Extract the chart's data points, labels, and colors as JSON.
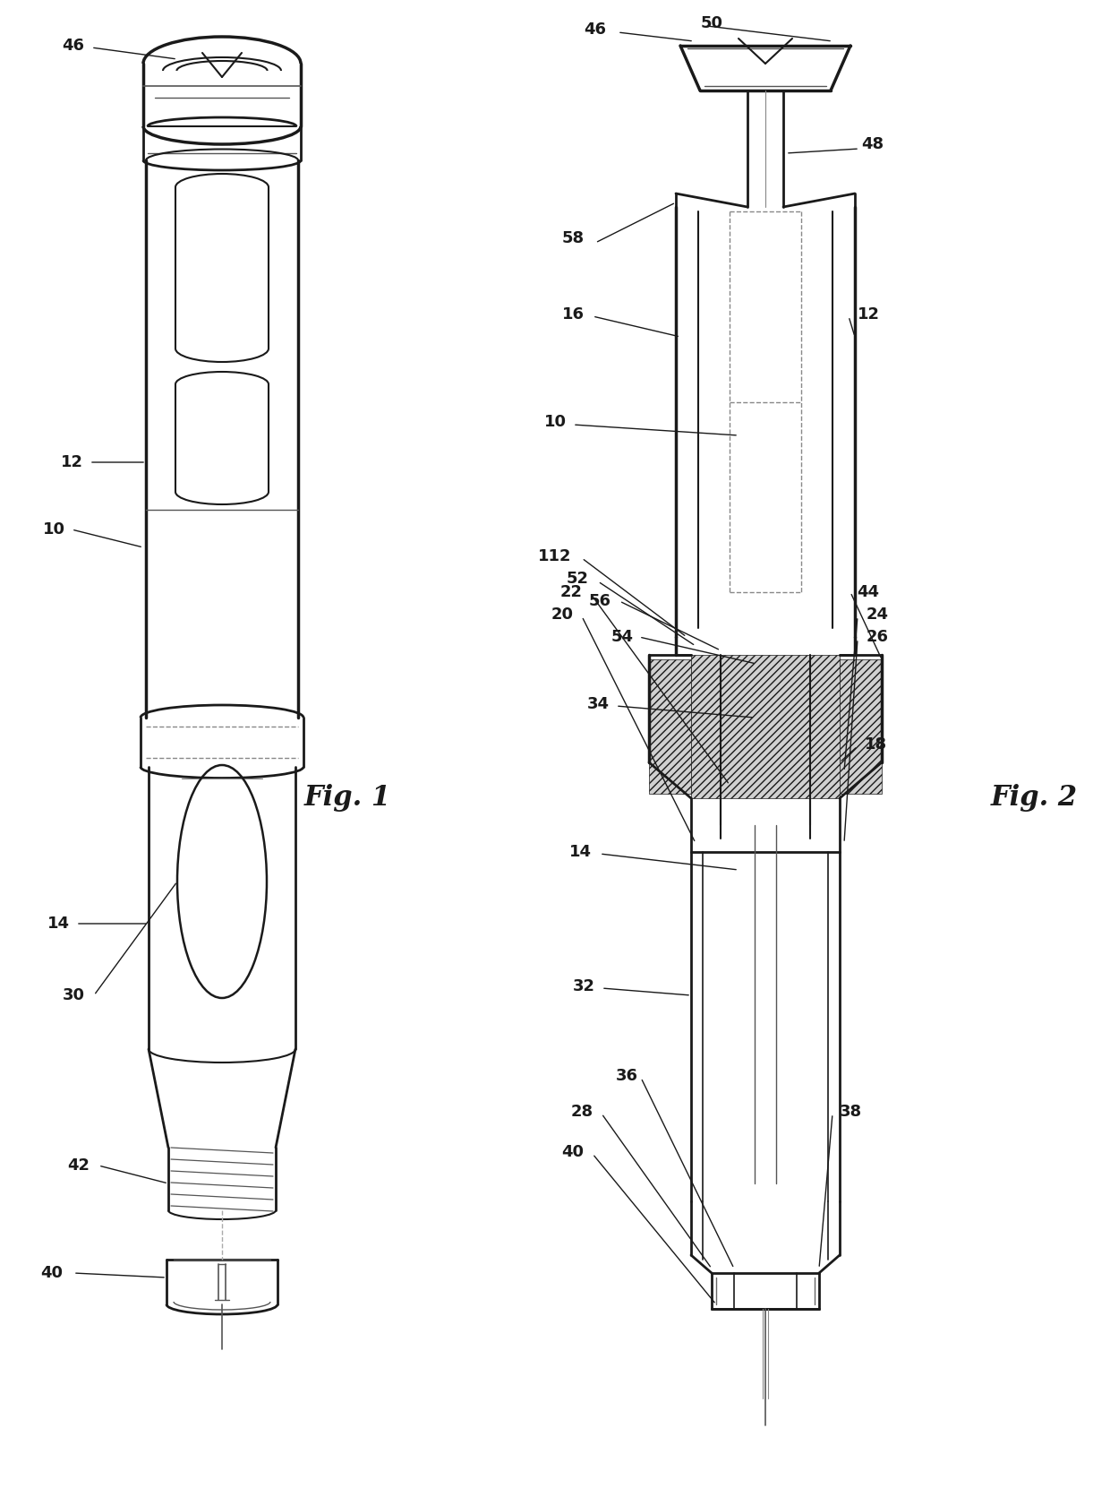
{
  "background_color": "#ffffff",
  "line_color": "#1a1a1a",
  "fig_width": 12.4,
  "fig_height": 16.71,
  "dpi": 100
}
